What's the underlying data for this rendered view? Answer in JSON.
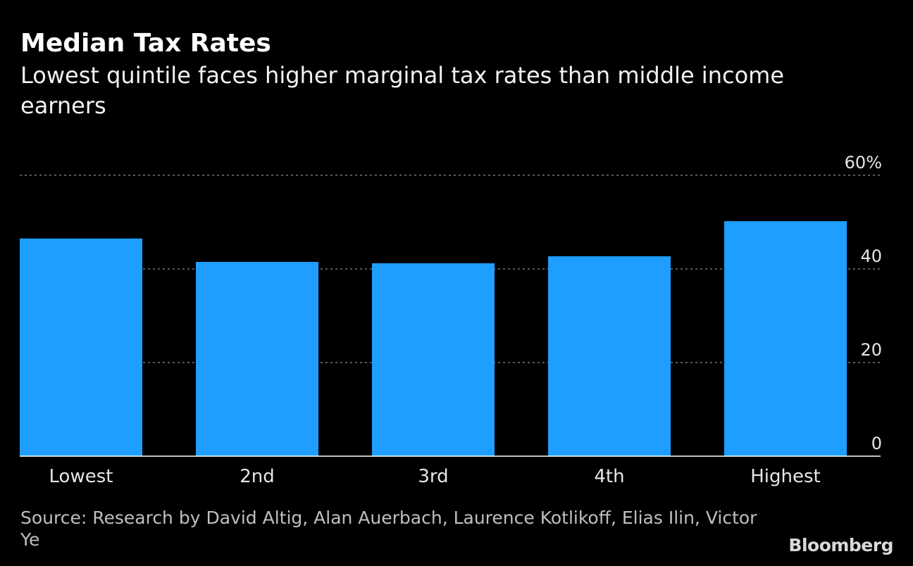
{
  "header": {
    "title": "Median Tax Rates",
    "subtitle": "Lowest quintile faces higher marginal tax rates than middle income earners"
  },
  "footer": {
    "source": "Source: Research by David Altig, Alan Auerbach, Laurence Kotlikoff, Elias Ilin, Victor Ye",
    "brand": "Bloomberg"
  },
  "colors": {
    "bar": "#1e9efe",
    "background": "#000000",
    "grid": "#777777",
    "axis": "#ffffff"
  },
  "chart_data": {
    "type": "bar",
    "title": "Median Tax Rates",
    "subtitle": "Lowest quintile faces higher marginal tax rates than middle income earners",
    "categories": [
      "Lowest",
      "2nd",
      "3rd",
      "4th",
      "Highest"
    ],
    "values": [
      46.5,
      41.5,
      41.2,
      42.7,
      50.2
    ],
    "ylim": [
      0,
      60
    ],
    "yticks": [
      0,
      20,
      40,
      60
    ],
    "ytick_labels": [
      "0",
      "20",
      "40",
      "60%"
    ],
    "xlabel": "",
    "ylabel": "",
    "grid": true,
    "y_axis_position": "right"
  }
}
